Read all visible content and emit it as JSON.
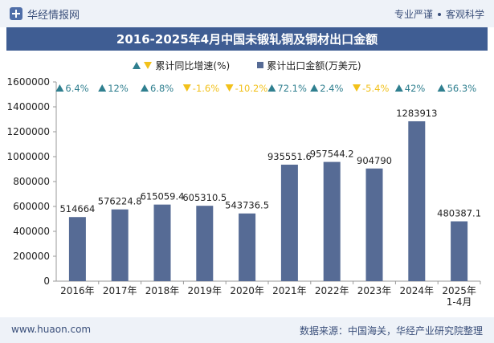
{
  "header": {
    "brand": "华经情报网",
    "slogan_left": "专业严谨",
    "slogan_right": "客观科学"
  },
  "footer": {
    "website": "www.huaon.com",
    "source": "数据来源：中国海关，华经产业研究院整理"
  },
  "colors": {
    "bar": "#566b95",
    "up": "#2f7f8f",
    "down": "#f2c11a",
    "title_bg": "#3f5d93"
  },
  "chart_data": {
    "type": "bar",
    "title": "2016-2025年4月中国未锻轧铜及铜材出口金额",
    "categories": [
      "2016年",
      "2017年",
      "2018年",
      "2019年",
      "2020年",
      "2021年",
      "2022年",
      "2023年",
      "2024年",
      "2025年\n1-4月"
    ],
    "ylim": [
      0,
      1600000
    ],
    "yticks": [
      0,
      200000,
      400000,
      600000,
      800000,
      1000000,
      1200000,
      1400000,
      1600000
    ],
    "legend_position": "top",
    "series": [
      {
        "name": "累计出口金额(万美元)",
        "kind": "bar",
        "values": [
          514664,
          576224.8,
          615059.4,
          605310.5,
          543736.5,
          935551.6,
          957544.2,
          904790,
          1283913,
          480387.1
        ],
        "labels": [
          "514664",
          "576224.8",
          "615059.4",
          "605310.5",
          "543736.5",
          "935551.6",
          "957544.2",
          "904790",
          "1283913",
          "480387.1"
        ]
      },
      {
        "name": "累计同比增速(%)",
        "kind": "growth",
        "values": [
          6.4,
          12,
          6.8,
          -1.6,
          -10.2,
          72.1,
          2.4,
          -5.4,
          42,
          56.3
        ],
        "labels": [
          "6.4%",
          "12%",
          "6.8%",
          "-1.6%",
          "-10.2%",
          "72.1%",
          "2.4%",
          "-5.4%",
          "42%",
          "56.3%"
        ]
      }
    ]
  }
}
